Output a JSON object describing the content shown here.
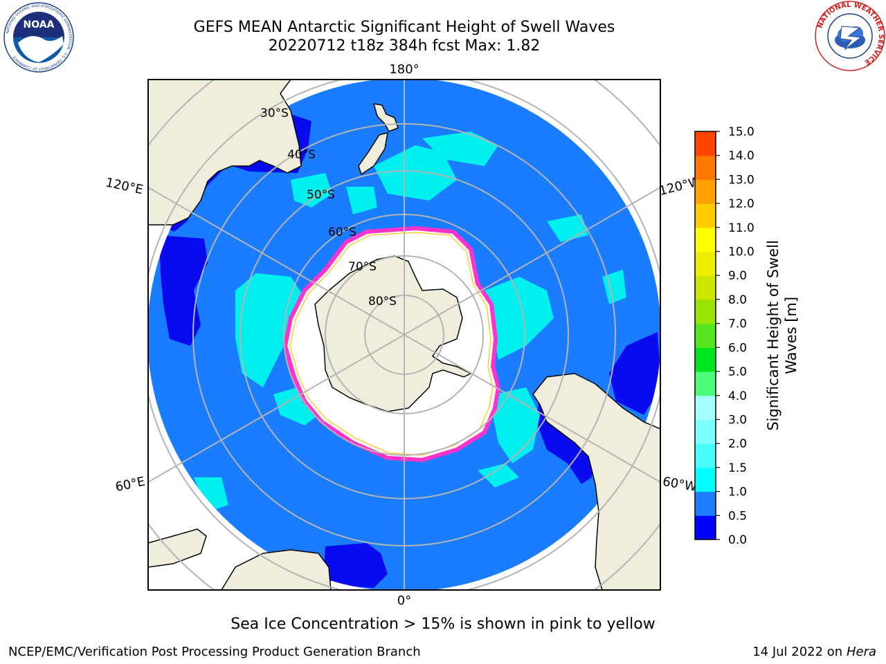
{
  "header": {
    "title_line1": "GEFS MEAN Antarctic Significant Height of Swell Waves",
    "title_line2": "20220712 t18z 384h fcst   Max: 1.82"
  },
  "map": {
    "projection": "south-polar-stereographic",
    "longitude_labels": {
      "top": "180°",
      "bottom": "0°",
      "left_upper": "120°E",
      "right_upper": "120°W",
      "left_lower": "60°E",
      "right_lower": "60°W"
    },
    "latitude_labels": [
      "30°S",
      "40°S",
      "50°S",
      "60°S",
      "70°S",
      "80°S"
    ],
    "colors": {
      "ocean_base": "#1a7cff",
      "ocean_low": "#0a0aee",
      "ocean_mid": "#00f0f0",
      "ocean_light": "#55fbfb",
      "land": "#efeedc",
      "sea_ice": "#ffffff",
      "ice_edge": "#ff33cc",
      "ice_edge_inner": "#ffcc33",
      "graticule": "#b4b4b4"
    }
  },
  "colorbar": {
    "label_line1": "Significant Height of Swell",
    "label_line2": "Waves [m]",
    "ticks": [
      "0.0",
      "0.5",
      "1.0",
      "1.5",
      "2.0",
      "3.0",
      "4.0",
      "5.0",
      "6.0",
      "7.0",
      "8.0",
      "9.0",
      "10.0",
      "11.0",
      "12.0",
      "13.0",
      "14.0",
      "15.0"
    ],
    "colors": [
      "#0000ff",
      "#1e7eff",
      "#00ffff",
      "#48fcfc",
      "#7efefe",
      "#a6fefe",
      "#4dfb7a",
      "#00e61e",
      "#55e61e",
      "#99e400",
      "#cce600",
      "#eeee00",
      "#ffff00",
      "#ffcc00",
      "#ffa000",
      "#ff7800",
      "#ff4600",
      "#ff0000"
    ]
  },
  "logos": {
    "noaa_text": "NOAA",
    "noaa_ring_text": "NATIONAL OCEANIC AND ATMOSPHERIC ADMINISTRATION · U.S. DEPARTMENT OF COMMERCE",
    "nws_ring_text": "NATIONAL WEATHER SERVICE"
  },
  "footer": {
    "note": "Sea Ice Concentration > 15% is shown in pink to yellow",
    "left": "NCEP/EMC/Verification Post Processing Product Generation Branch",
    "right_date": "14 Jul 2022 on ",
    "right_host": "Hera"
  }
}
